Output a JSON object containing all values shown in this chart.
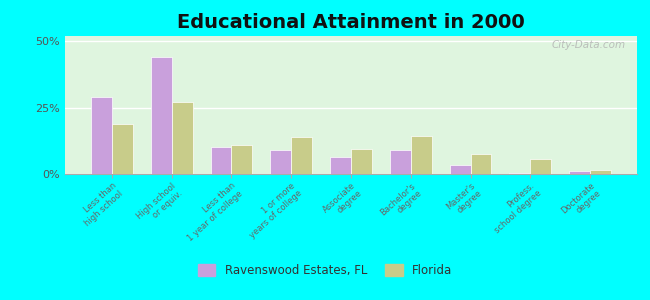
{
  "title": "Educational Attainment in 2000",
  "categories": [
    "Less than\nhigh school",
    "High school\nor equiv.",
    "Less than\n1 year of college",
    "1 or more\nyears of college",
    "Associate\ndegree",
    "Bachelor's\ndegree",
    "Master's\ndegree",
    "Profess.\nschool degree",
    "Doctorate\ndegree"
  ],
  "ravenswood": [
    29.0,
    44.0,
    10.0,
    9.0,
    6.5,
    9.0,
    3.5,
    0.5,
    1.0
  ],
  "florida": [
    19.0,
    27.0,
    11.0,
    14.0,
    9.5,
    14.5,
    7.5,
    5.5,
    1.5
  ],
  "ravenswood_color": "#c9a0dc",
  "florida_color": "#c8cc8a",
  "background_color": "#dff5df",
  "outer_background": "#00ffff",
  "ylim": [
    0,
    52
  ],
  "yticks": [
    0,
    25,
    50
  ],
  "ytick_labels": [
    "0%",
    "25%",
    "50%"
  ],
  "bar_width": 0.35,
  "title_fontsize": 14,
  "legend_labels": [
    "Ravenswood Estates, FL",
    "Florida"
  ],
  "watermark": "City-Data.com"
}
